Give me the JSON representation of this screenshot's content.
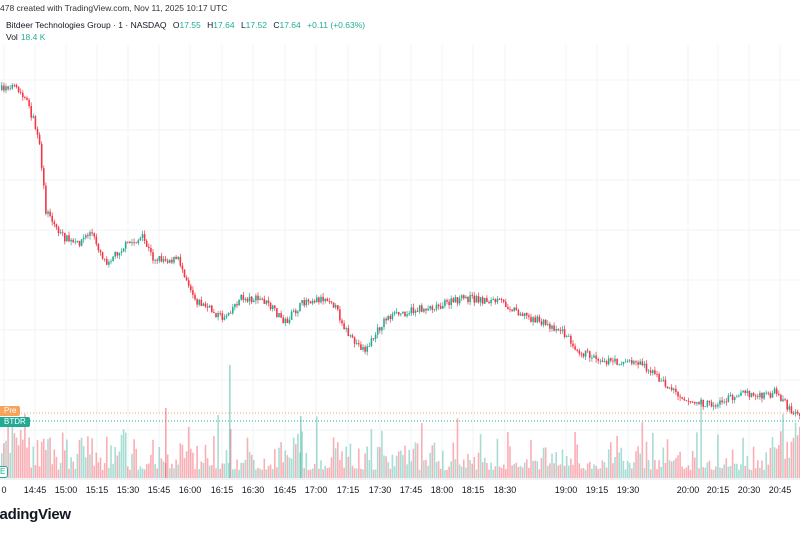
{
  "credit": "478 created with TradingView.com, Nov 11, 2025 10:17 UTC",
  "legend": {
    "symbol": "Bitdeer Technologies Group · 1 · NASDAQ",
    "open_label": "O",
    "open": "17.55",
    "high_label": "H",
    "high": "17.64",
    "low_label": "L",
    "low": "17.52",
    "close_label": "C",
    "close": "17.64",
    "change": "+0.11 (+0.63%)",
    "vol_label": "Vol",
    "vol": "18.4 K"
  },
  "tags": {
    "pre": "Pre",
    "ticker": "BTDR",
    "session": "E"
  },
  "logo": "radingView",
  "colors": {
    "up": "#22ab94",
    "down": "#f23645",
    "pre_line": "#f7a35c",
    "ticker_line": "#22ab94"
  },
  "chart_data": {
    "type": "candlestick",
    "interval": "1 minute",
    "x_ticks": [
      "0",
      "14:45",
      "15:00",
      "15:15",
      "15:30",
      "15:45",
      "16:00",
      "16:15",
      "16:30",
      "16:45",
      "17:00",
      "17:15",
      "17:30",
      "17:45",
      "18:00",
      "18:15",
      "18:30",
      "19:00",
      "19:15",
      "19:30",
      "20:00",
      "20:15",
      "20:30",
      "20:45"
    ],
    "last_close": 17.64,
    "volume_last": "18.4 K",
    "grid": true
  }
}
